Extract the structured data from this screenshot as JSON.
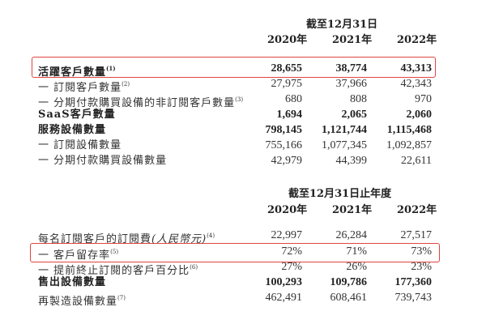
{
  "section1": {
    "period_header": "截至12月31日",
    "years": [
      "2020年",
      "2021年",
      "2022年"
    ],
    "rows": [
      {
        "label": "活躍客戶數量",
        "note": "(1)",
        "bold": true,
        "highlighted": true,
        "values": [
          "28,655",
          "38,774",
          "43,313"
        ]
      },
      {
        "label": "一 訂閱客戶數量",
        "note": "(2)",
        "bold": false,
        "values": [
          "27,975",
          "37,966",
          "42,343"
        ]
      },
      {
        "label": "一 分期付款購買設備的非訂閱客戶數量",
        "note": "(3)",
        "bold": false,
        "values": [
          "680",
          "808",
          "970"
        ]
      },
      {
        "label": "SaaS客戶數量",
        "note": "",
        "bold": true,
        "values": [
          "1,694",
          "2,065",
          "2,060"
        ]
      },
      {
        "label": "服務設備數量",
        "note": "",
        "bold": true,
        "values": [
          "798,145",
          "1,121,744",
          "1,115,468"
        ]
      },
      {
        "label": "一 訂閱設備數量",
        "note": "",
        "bold": false,
        "values": [
          "755,166",
          "1,077,345",
          "1,092,857"
        ]
      },
      {
        "label": "一 分期付款購買設備數量",
        "note": "",
        "bold": false,
        "values": [
          "42,979",
          "44,399",
          "22,611"
        ]
      }
    ]
  },
  "section2": {
    "period_header": "截至12月31日止年度",
    "years": [
      "2020年",
      "2021年",
      "2022年"
    ],
    "rows": [
      {
        "label": "每名訂閱客戶的訂閱費",
        "italic_suffix": "(人民幣元)",
        "note": "(4)",
        "bold": false,
        "values": [
          "22,997",
          "26,284",
          "27,517"
        ]
      },
      {
        "label": "一 客戶留存率",
        "note": "(5)",
        "bold": false,
        "highlighted": true,
        "values": [
          "72%",
          "71%",
          "73%"
        ]
      },
      {
        "label": "一 提前終止訂閱的客戶百分比",
        "note": "(6)",
        "bold": false,
        "values": [
          "27%",
          "26%",
          "23%"
        ]
      },
      {
        "label": "售出設備數量",
        "note": "",
        "bold": true,
        "values": [
          "100,293",
          "109,786",
          "177,360"
        ]
      },
      {
        "label": "再製造設備數量",
        "note": "(7)",
        "bold": false,
        "values": [
          "462,491",
          "608,461",
          "739,743"
        ]
      }
    ]
  },
  "colors": {
    "highlight_border": "#e0443e",
    "text": "#333333"
  }
}
